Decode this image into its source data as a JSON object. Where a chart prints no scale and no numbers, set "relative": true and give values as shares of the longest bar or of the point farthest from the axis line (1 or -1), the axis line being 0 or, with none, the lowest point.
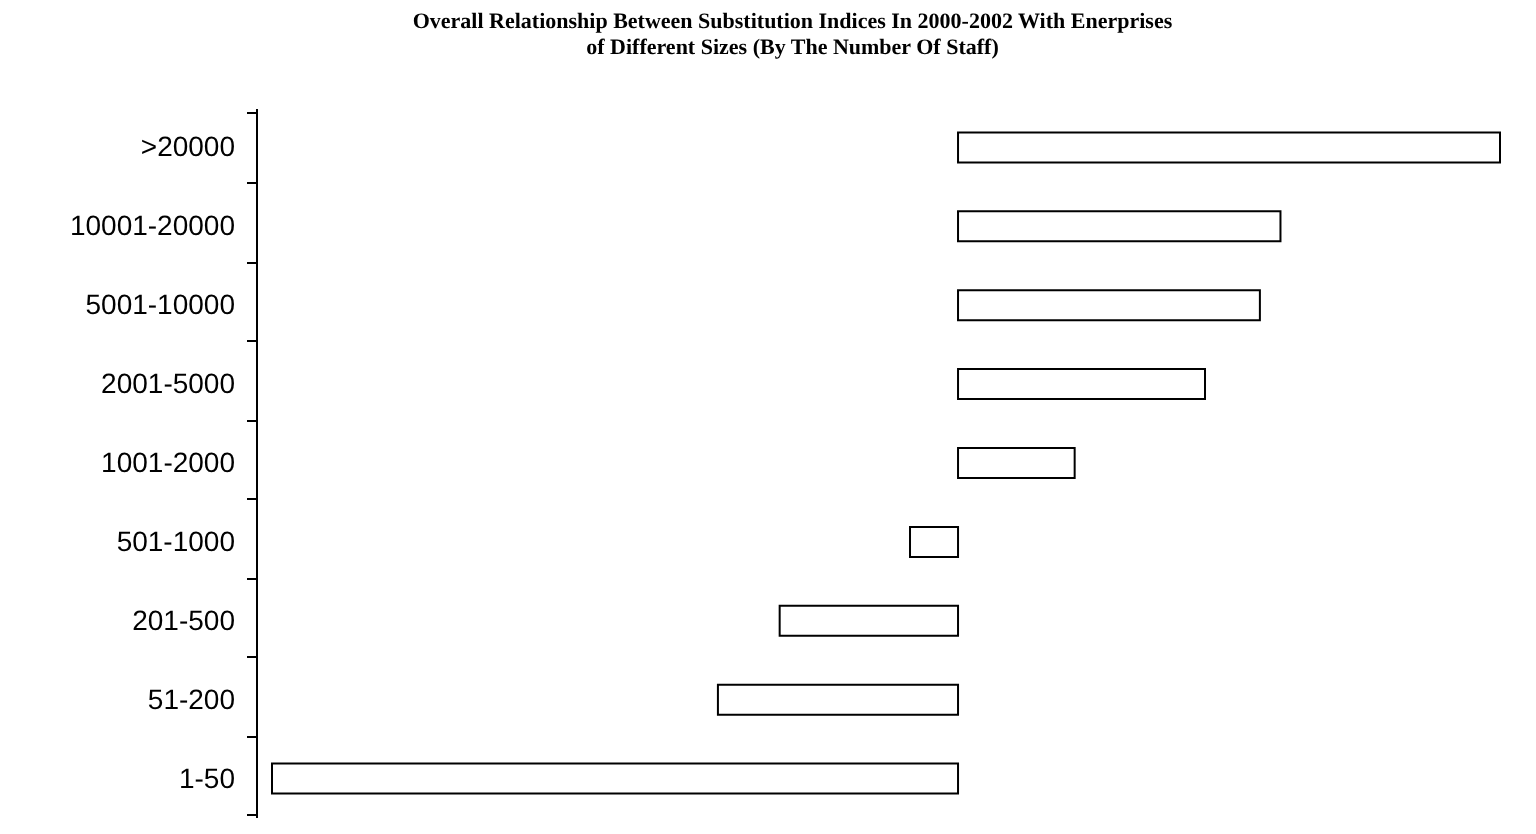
{
  "chart_data": {
    "type": "bar",
    "orientation": "horizontal",
    "relative": true,
    "title": "Overall Relationship Between Substitution Indices In 2000-2002 With Enerprises\nof Different Sizes (By The Number Of Staff)",
    "categories": [
      ">20000",
      "10001-20000",
      "5001-10000",
      "2001-5000",
      "1001-2000",
      "501-1000",
      "201-500",
      "51-200",
      "1-50"
    ],
    "series": [
      {
        "color": "#ffffff",
        "values": [
          0.79,
          0.47,
          0.44,
          0.36,
          0.17,
          -0.07,
          -0.26,
          -0.35,
          -1
        ]
      }
    ]
  }
}
